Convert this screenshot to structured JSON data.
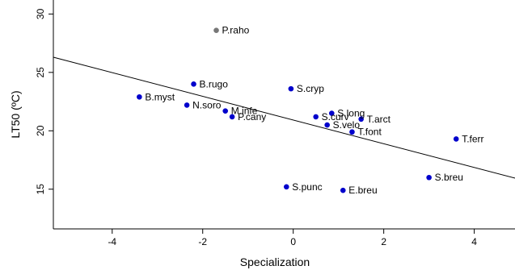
{
  "chart_data": {
    "type": "scatter",
    "title": "",
    "xlabel": "Specialization",
    "ylabel": "LT50 (ºC)",
    "xlim": [
      -5.3,
      4.9
    ],
    "ylim": [
      11.6,
      31.2
    ],
    "x_ticks": [
      -4,
      -2,
      0,
      2,
      4
    ],
    "y_ticks": [
      15,
      20,
      25,
      30
    ],
    "grid": false,
    "legend": "none",
    "point_color": "#0000cc",
    "highlight_color": "#777777",
    "points": [
      {
        "label": "P.raho",
        "x": -1.7,
        "y": 28.6,
        "highlight": true
      },
      {
        "label": "B.rugo",
        "x": -2.2,
        "y": 24.0
      },
      {
        "label": "B.myst",
        "x": -3.4,
        "y": 22.9
      },
      {
        "label": "N.soro",
        "x": -2.35,
        "y": 22.2
      },
      {
        "label": "M.infe",
        "x": -1.5,
        "y": 21.7
      },
      {
        "label": "P.cany",
        "x": -1.35,
        "y": 21.2
      },
      {
        "label": "S.cryp",
        "x": -0.05,
        "y": 23.6
      },
      {
        "label": "S.long",
        "x": 0.85,
        "y": 21.5
      },
      {
        "label": "S.curv",
        "x": 0.5,
        "y": 21.2
      },
      {
        "label": "T.arct",
        "x": 1.5,
        "y": 21.0
      },
      {
        "label": "S.velo",
        "x": 0.75,
        "y": 20.5
      },
      {
        "label": "T.font",
        "x": 1.3,
        "y": 19.9
      },
      {
        "label": "T.ferr",
        "x": 3.6,
        "y": 19.3
      },
      {
        "label": "S.breu",
        "x": 3.0,
        "y": 16.0
      },
      {
        "label": "S.punc",
        "x": -0.15,
        "y": 15.2
      },
      {
        "label": "E.breu",
        "x": 1.1,
        "y": 14.9
      }
    ],
    "fit_line": {
      "x": [
        -5.3,
        4.9
      ],
      "y": [
        26.3,
        15.95
      ]
    }
  }
}
